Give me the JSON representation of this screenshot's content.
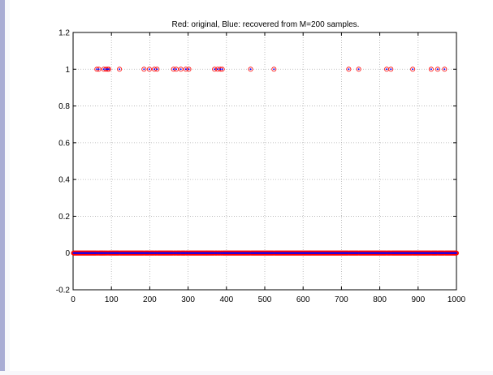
{
  "chart_data": {
    "type": "scatter",
    "title": "Red: original, Blue: recovered from M=200 samples.",
    "xlabel": "",
    "ylabel": "",
    "xlim": [
      0,
      1000
    ],
    "ylim": [
      -0.2,
      1.2
    ],
    "grid": true,
    "x_ticks": [
      0,
      100,
      200,
      300,
      400,
      500,
      600,
      700,
      800,
      900,
      1000
    ],
    "y_ticks": [
      -0.2,
      0,
      0.2,
      0.4,
      0.6,
      0.8,
      1,
      1.2
    ],
    "x_tick_labels": [
      "0",
      "100",
      "200",
      "300",
      "400",
      "500",
      "600",
      "700",
      "800",
      "900",
      "1000"
    ],
    "y_tick_labels": [
      "-0.2",
      "0",
      "0.2",
      "0.4",
      "0.6",
      "0.8",
      "1",
      "1.2"
    ],
    "signal_length": 1000,
    "series": [
      {
        "name": "original",
        "color": "#ff0000",
        "marker": "circle",
        "nonzero_value": 1,
        "x_nonzero": [
          62,
          67,
          80,
          86,
          90,
          93,
          121,
          185,
          199,
          212,
          219,
          262,
          269,
          281,
          294,
          302,
          369,
          377,
          384,
          389,
          463,
          524,
          719,
          745,
          818,
          829,
          886,
          934,
          951,
          969
        ]
      },
      {
        "name": "recovered",
        "color": "#0000ff",
        "marker": "dot",
        "nonzero_value": 1,
        "x_nonzero": [
          62,
          67,
          80,
          86,
          90,
          93,
          121,
          185,
          199,
          212,
          219,
          262,
          269,
          281,
          294,
          302,
          369,
          377,
          384,
          389,
          463,
          524,
          719,
          745,
          818,
          829,
          886,
          934,
          951,
          969
        ]
      }
    ]
  }
}
